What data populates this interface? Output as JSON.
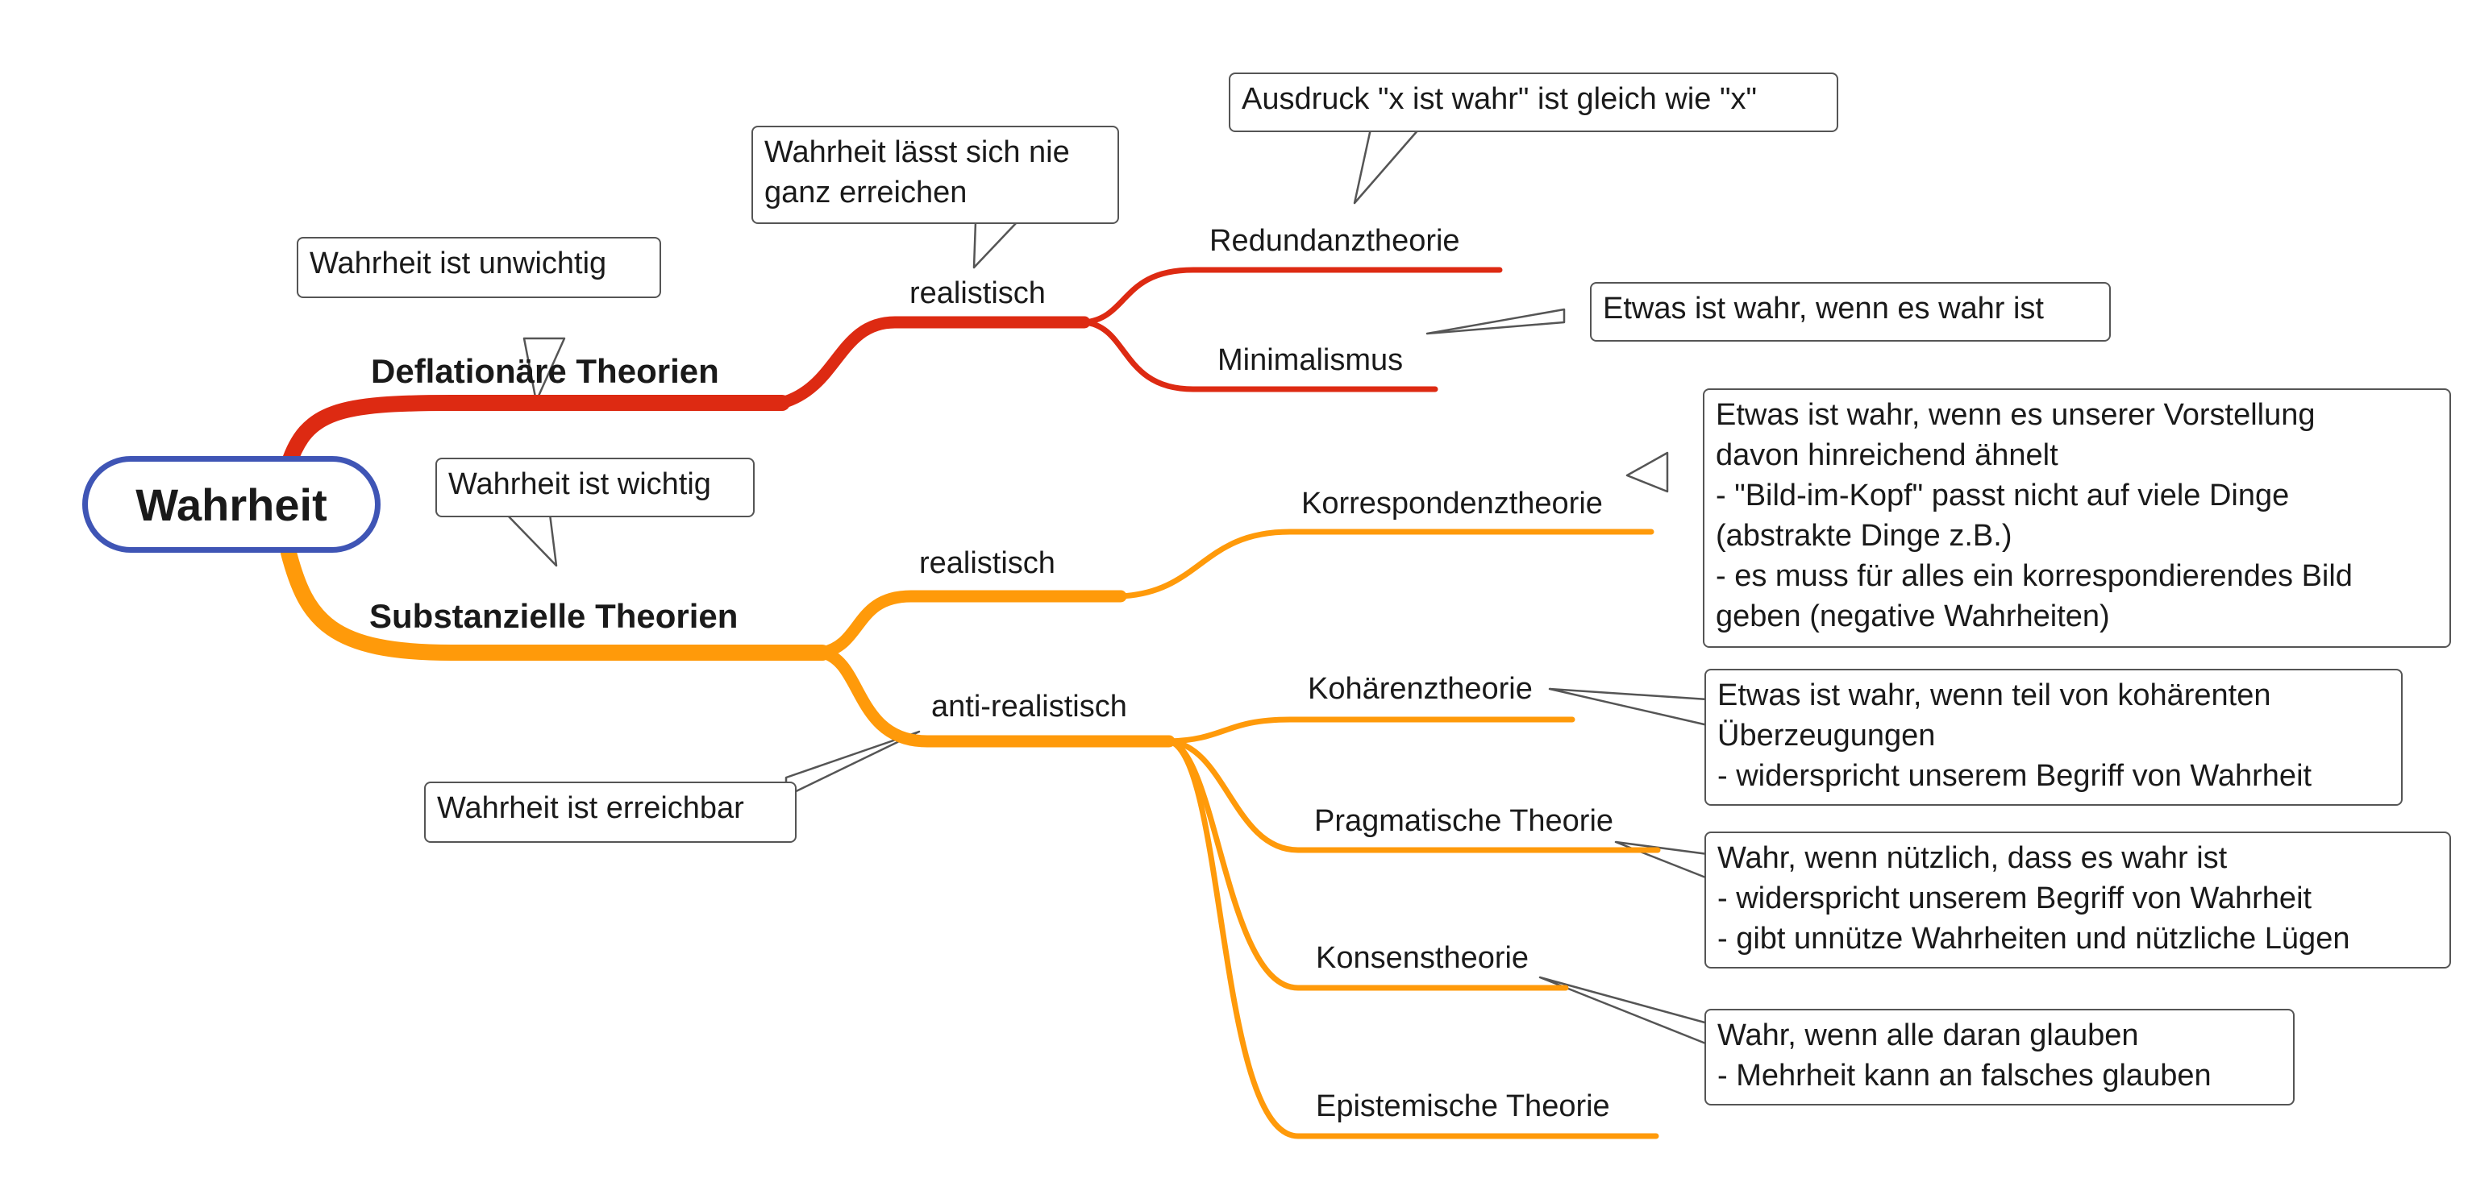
{
  "root": {
    "label": "Wahrheit"
  },
  "colors": {
    "deflation": "#dd2a12",
    "substance": "#ff9a0a",
    "root_border": "#3f55b5",
    "callout_border": "#555555"
  },
  "branches": {
    "deflationary": {
      "label": "Deflationäre Theorien",
      "note": "Wahrheit ist unwichtig",
      "sub": {
        "label": "realistisch",
        "note": [
          "Wahrheit lässt sich nie",
          "ganz erreichen"
        ],
        "theories": [
          {
            "label": "Redundanztheorie",
            "note": [
              "Ausdruck \"x ist wahr\" ist gleich wie \"x\""
            ]
          },
          {
            "label": "Minimalismus",
            "note": [
              "Etwas ist wahr, wenn es wahr ist"
            ]
          }
        ]
      }
    },
    "substantial": {
      "label": "Substanzielle Theorien",
      "note": "Wahrheit ist wichtig",
      "realist": {
        "label": "realistisch",
        "theories": [
          {
            "label": "Korrespondenztheorie",
            "note": [
              "Etwas ist wahr, wenn es unserer Vorstellung",
              "davon hinreichend ähnelt",
              "- \"Bild-im-Kopf\" passt nicht auf viele Dinge",
              "(abstrakte Dinge z.B.)",
              "- es muss für alles ein korrespondierendes Bild",
              "geben (negative Wahrheiten)"
            ]
          }
        ]
      },
      "antirealist": {
        "label": "anti-realistisch",
        "note": "Wahrheit ist erreichbar",
        "theories": [
          {
            "label": "Kohärenztheorie",
            "note": [
              "Etwas ist wahr, wenn teil von kohärenten",
              "Überzeugungen",
              "- widerspricht unserem Begriff von Wahrheit"
            ]
          },
          {
            "label": "Pragmatische Theorie",
            "note": [
              "Wahr, wenn nützlich, dass es wahr ist",
              "- widerspricht unserem Begriff von Wahrheit",
              "- gibt unnütze Wahrheiten und nützliche Lügen"
            ]
          },
          {
            "label": "Konsenstheorie",
            "note": [
              "Wahr, wenn alle daran glauben",
              "- Mehrheit kann an falsches glauben"
            ]
          },
          {
            "label": "Epistemische Theorie"
          }
        ]
      }
    }
  }
}
